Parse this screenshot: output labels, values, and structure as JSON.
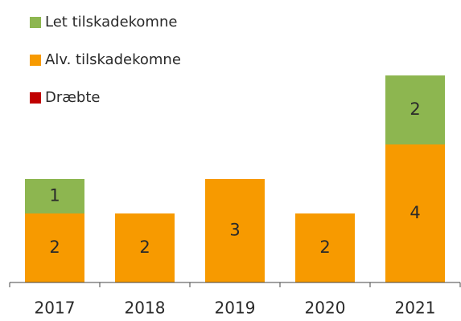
{
  "chart_data": {
    "type": "stacked_bar",
    "categories": [
      "2017",
      "2018",
      "2019",
      "2020",
      "2021"
    ],
    "series": [
      {
        "name": "Dræbte",
        "color": "#c00000",
        "values": [
          0,
          0,
          0,
          0,
          0
        ]
      },
      {
        "name": "Alv. tilskadekomne",
        "color": "#f79a00",
        "values": [
          2,
          2,
          3,
          2,
          4
        ]
      },
      {
        "name": "Let tilskadekomne",
        "color": "#8db650",
        "values": [
          1,
          0,
          0,
          0,
          2
        ]
      }
    ],
    "ylim": [
      0,
      8
    ]
  }
}
